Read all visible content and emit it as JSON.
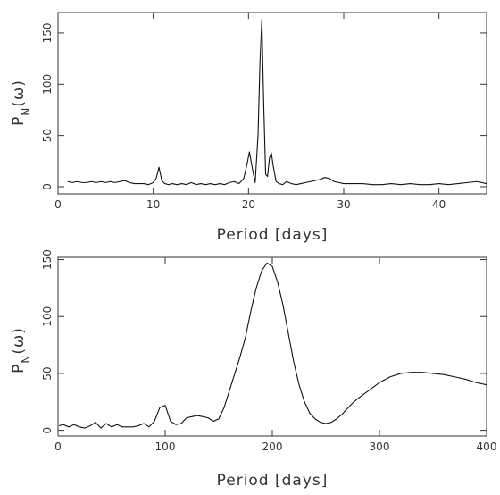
{
  "chart_data": [
    {
      "type": "line",
      "xlabel": "Period [days]",
      "ylabel": "P_N(ω)",
      "xlim": [
        0,
        45
      ],
      "ylim": [
        -7,
        170
      ],
      "xticks": [
        0,
        10,
        20,
        30,
        40
      ],
      "yticks": [
        0,
        50,
        100,
        150
      ],
      "grid": false,
      "series": [
        {
          "x": [
            1,
            1.5,
            2,
            2.5,
            3,
            3.5,
            4,
            4.5,
            5,
            5.5,
            6,
            6.5,
            7,
            7.5,
            8,
            8.5,
            9,
            9.5,
            10,
            10.3,
            10.6,
            10.9,
            11.2,
            11.6,
            12,
            12.5,
            13,
            13.5,
            14,
            14.5,
            15,
            15.5,
            16,
            16.5,
            17,
            17.5,
            18,
            18.5,
            19,
            19.5,
            19.8,
            20.1,
            20.4,
            20.7,
            21,
            21.2,
            21.4,
            21.6,
            21.8,
            22,
            22.2,
            22.4,
            22.6,
            22.9,
            23.2,
            23.6,
            24,
            24.5,
            25,
            25.5,
            26,
            26.5,
            27,
            27.5,
            28,
            28.5,
            29,
            29.5,
            30,
            31,
            32,
            33,
            34,
            35,
            36,
            37,
            38,
            39,
            40,
            41,
            42,
            43,
            44,
            45
          ],
          "y": [
            5,
            4,
            5,
            4,
            4,
            5,
            4,
            5,
            4,
            5,
            4,
            5,
            6,
            4,
            3,
            3,
            3,
            2,
            4,
            8,
            19,
            6,
            3,
            2,
            3,
            2,
            3,
            2,
            4,
            2,
            3,
            2,
            3,
            2,
            3,
            2,
            4,
            5,
            3,
            8,
            20,
            34,
            18,
            4,
            50,
            120,
            163,
            80,
            12,
            10,
            28,
            33,
            20,
            5,
            3,
            2,
            5,
            3,
            2,
            3,
            4,
            5,
            6,
            7,
            9,
            8,
            5,
            4,
            3,
            3,
            3,
            2,
            2,
            3,
            2,
            3,
            2,
            2,
            3,
            2,
            3,
            4,
            5,
            3
          ]
        }
      ]
    },
    {
      "type": "line",
      "xlabel": "Period [days]",
      "ylabel": "P_N(ω)",
      "xlim": [
        0,
        400
      ],
      "ylim": [
        -5,
        152
      ],
      "xticks": [
        0,
        100,
        200,
        300,
        400
      ],
      "yticks": [
        0,
        50,
        100,
        150
      ],
      "grid": false,
      "series": [
        {
          "x": [
            1,
            5,
            10,
            15,
            20,
            25,
            30,
            35,
            40,
            45,
            50,
            55,
            60,
            65,
            70,
            75,
            80,
            85,
            90,
            95,
            100,
            105,
            110,
            115,
            120,
            125,
            130,
            135,
            140,
            145,
            150,
            155,
            160,
            165,
            170,
            175,
            180,
            185,
            190,
            195,
            200,
            205,
            210,
            215,
            220,
            225,
            230,
            235,
            240,
            245,
            250,
            255,
            260,
            265,
            270,
            275,
            280,
            290,
            300,
            310,
            320,
            330,
            340,
            350,
            360,
            370,
            380,
            390,
            400
          ],
          "y": [
            4,
            5,
            3,
            5,
            3,
            2,
            4,
            7,
            2,
            6,
            3,
            5,
            3,
            3,
            3,
            4,
            6,
            3,
            8,
            20,
            22,
            8,
            5,
            6,
            11,
            12,
            13,
            12,
            11,
            8,
            10,
            20,
            35,
            50,
            65,
            82,
            105,
            125,
            140,
            147,
            144,
            130,
            110,
            85,
            60,
            40,
            25,
            15,
            10,
            7,
            6,
            7,
            10,
            14,
            19,
            24,
            28,
            35,
            42,
            47,
            50,
            51,
            51,
            50,
            49,
            47,
            45,
            42,
            40
          ]
        }
      ]
    }
  ]
}
